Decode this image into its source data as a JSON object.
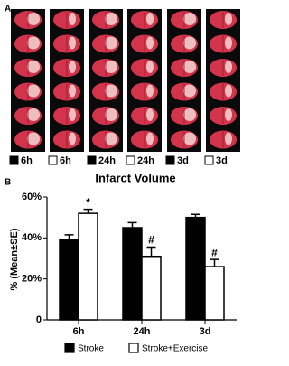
{
  "panel_a": {
    "label": "A",
    "columns": [
      {
        "label": "6h",
        "color": "#000000"
      },
      {
        "label": "6h",
        "color": "#ffffff"
      },
      {
        "label": "24h",
        "color": "#000000"
      },
      {
        "label": "24h",
        "color": "#ffffff"
      },
      {
        "label": "3d",
        "color": "#000000"
      },
      {
        "label": "3d",
        "color": "#ffffff"
      }
    ]
  },
  "panel_b_label": "B",
  "chart_data": {
    "type": "bar",
    "title": "Infarct Volume",
    "y_label": "% (Mean±SE)",
    "categories": [
      "6h",
      "24h",
      "3d"
    ],
    "series": [
      {
        "name": "Stroke",
        "color": "#000000",
        "values": [
          39,
          45,
          50
        ],
        "errors": [
          2.5,
          2.5,
          1.5
        ]
      },
      {
        "name": "Stroke+Exercise",
        "color": "#ffffff",
        "values": [
          52,
          31,
          26
        ],
        "errors": [
          2,
          4.5,
          3.5
        ],
        "markers": [
          "*",
          "#",
          "#"
        ]
      }
    ],
    "ylim": [
      0,
      60
    ],
    "yticks": [
      {
        "value": 0,
        "label": "0"
      },
      {
        "value": 20,
        "label": "20%"
      },
      {
        "value": 40,
        "label": "40%"
      },
      {
        "value": 60,
        "label": "60%"
      }
    ]
  }
}
